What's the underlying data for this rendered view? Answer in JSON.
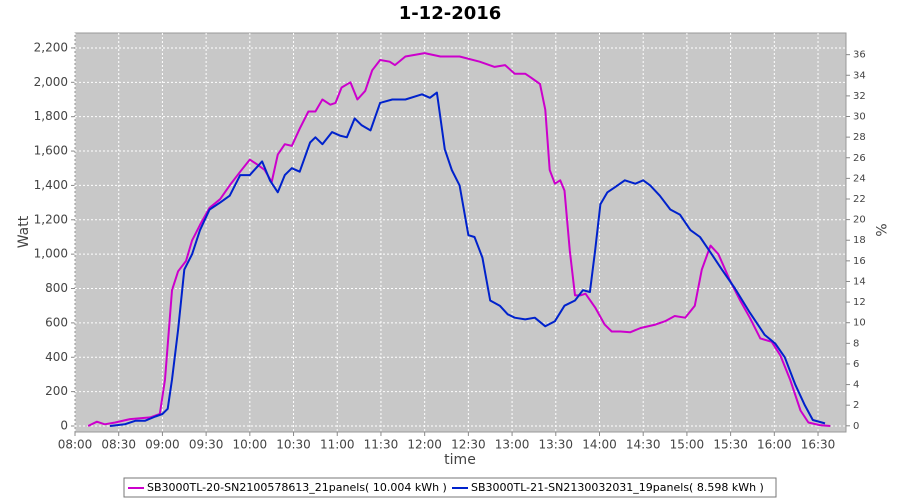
{
  "chart_data": {
    "type": "line",
    "title": "1-12-2016",
    "x_label": "time",
    "y_label": "Watt",
    "y2_label": "%",
    "xlim": [
      8,
      16.82
    ],
    "ylim": [
      -35,
      2287
    ],
    "y2lim": [
      -0.6,
      38.1
    ],
    "grid": true,
    "legend": "bottom",
    "xticks": [
      {
        "value": 8,
        "label": "08:00"
      },
      {
        "value": 8.5,
        "label": "08:30"
      },
      {
        "value": 9,
        "label": "09:00"
      },
      {
        "value": 9.5,
        "label": "09:30"
      },
      {
        "value": 10,
        "label": "10:00"
      },
      {
        "value": 10.5,
        "label": "10:30"
      },
      {
        "value": 11,
        "label": "11:00"
      },
      {
        "value": 11.5,
        "label": "11:30"
      },
      {
        "value": 12,
        "label": "12:00"
      },
      {
        "value": 12.5,
        "label": "12:30"
      },
      {
        "value": 13,
        "label": "13:00"
      },
      {
        "value": 13.5,
        "label": "13:30"
      },
      {
        "value": 14,
        "label": "14:00"
      },
      {
        "value": 14.5,
        "label": "14:30"
      },
      {
        "value": 15,
        "label": "15:00"
      },
      {
        "value": 15.5,
        "label": "15:30"
      },
      {
        "value": 16,
        "label": "16:00"
      },
      {
        "value": 16.5,
        "label": "16:30"
      }
    ],
    "yticks": [
      0,
      200,
      400,
      600,
      800,
      {
        "value": 1000,
        "label": "1,000"
      },
      {
        "value": 1200,
        "label": "1,200"
      },
      {
        "value": 1400,
        "label": "1,400"
      },
      {
        "value": 1600,
        "label": "1,600"
      },
      {
        "value": 1800,
        "label": "1,800"
      },
      {
        "value": 2000,
        "label": "2,000"
      },
      {
        "value": 2200,
        "label": "2,200"
      }
    ],
    "y2ticks": [
      0,
      2,
      4,
      6,
      8,
      10,
      12,
      14,
      16,
      18,
      20,
      22,
      24,
      26,
      28,
      30,
      32,
      34,
      36
    ],
    "series": [
      {
        "name": "SB3000TL-20-SN2100578613_21panels( 10.004 kWh )",
        "color": "#cc00cc",
        "x": [
          8.15,
          8.25,
          8.34,
          8.46,
          8.63,
          8.86,
          8.97,
          9.03,
          9.11,
          9.18,
          9.27,
          9.34,
          9.43,
          9.54,
          9.66,
          9.77,
          9.89,
          10.0,
          10.09,
          10.17,
          10.25,
          10.32,
          10.4,
          10.48,
          10.57,
          10.67,
          10.75,
          10.83,
          10.92,
          10.98,
          11.05,
          11.15,
          11.23,
          11.32,
          11.4,
          11.49,
          11.6,
          11.66,
          11.78,
          12.0,
          12.18,
          12.4,
          12.63,
          12.8,
          12.92,
          13.03,
          13.15,
          13.21,
          13.32,
          13.38,
          13.43,
          13.49,
          13.55,
          13.6,
          13.66,
          13.72,
          13.78,
          13.84,
          13.95,
          14.06,
          14.14,
          14.24,
          14.35,
          14.47,
          14.64,
          14.75,
          14.86,
          14.98,
          15.09,
          15.17,
          15.27,
          15.36,
          15.49,
          15.61,
          15.72,
          15.84,
          15.97,
          16.07,
          16.18,
          16.3,
          16.39,
          16.52,
          16.64
        ],
        "values": [
          0,
          25,
          10,
          20,
          40,
          50,
          70,
          270,
          790,
          900,
          960,
          1080,
          1170,
          1270,
          1320,
          1400,
          1480,
          1550,
          1520,
          1490,
          1420,
          1580,
          1640,
          1630,
          1730,
          1830,
          1830,
          1900,
          1870,
          1880,
          1970,
          2000,
          1900,
          1950,
          2070,
          2130,
          2120,
          2100,
          2150,
          2170,
          2150,
          2150,
          2120,
          2090,
          2100,
          2050,
          2050,
          2030,
          1990,
          1840,
          1490,
          1410,
          1430,
          1370,
          1020,
          760,
          760,
          770,
          690,
          590,
          550,
          550,
          545,
          570,
          590,
          610,
          640,
          630,
          700,
          910,
          1050,
          1000,
          850,
          730,
          630,
          510,
          490,
          410,
          270,
          90,
          20,
          5,
          0
        ]
      },
      {
        "name": "SB3000TL-21-SN2130032031_19panels( 8.598 kWh )",
        "color": "#0022cc",
        "x": [
          8.4,
          8.57,
          8.69,
          8.8,
          8.92,
          9.0,
          9.06,
          9.11,
          9.18,
          9.25,
          9.34,
          9.43,
          9.54,
          9.66,
          9.77,
          9.89,
          10.0,
          10.14,
          10.23,
          10.32,
          10.4,
          10.48,
          10.57,
          10.69,
          10.75,
          10.83,
          10.94,
          11.03,
          11.11,
          11.2,
          11.28,
          11.38,
          11.49,
          11.63,
          11.78,
          11.97,
          12.06,
          12.14,
          12.23,
          12.31,
          12.4,
          12.5,
          12.57,
          12.66,
          12.75,
          12.86,
          12.95,
          13.03,
          13.15,
          13.26,
          13.38,
          13.49,
          13.6,
          13.72,
          13.81,
          13.89,
          13.95,
          14.01,
          14.09,
          14.18,
          14.29,
          14.41,
          14.5,
          14.58,
          14.69,
          14.81,
          14.92,
          15.04,
          15.15,
          15.27,
          15.4,
          15.55,
          15.72,
          15.89,
          16.01,
          16.12,
          16.24,
          16.35,
          16.44,
          16.58
        ],
        "values": [
          0,
          10,
          30,
          30,
          55,
          70,
          100,
          270,
          560,
          910,
          1000,
          1140,
          1260,
          1300,
          1340,
          1460,
          1460,
          1540,
          1430,
          1360,
          1460,
          1500,
          1480,
          1650,
          1680,
          1640,
          1710,
          1690,
          1680,
          1790,
          1750,
          1720,
          1880,
          1900,
          1900,
          1930,
          1910,
          1940,
          1610,
          1490,
          1400,
          1110,
          1100,
          980,
          730,
          700,
          650,
          630,
          620,
          630,
          580,
          610,
          700,
          730,
          790,
          780,
          1020,
          1290,
          1360,
          1390,
          1430,
          1410,
          1430,
          1400,
          1340,
          1260,
          1230,
          1140,
          1100,
          1010,
          910,
          800,
          660,
          530,
          480,
          400,
          240,
          120,
          35,
          15
        ]
      }
    ]
  }
}
